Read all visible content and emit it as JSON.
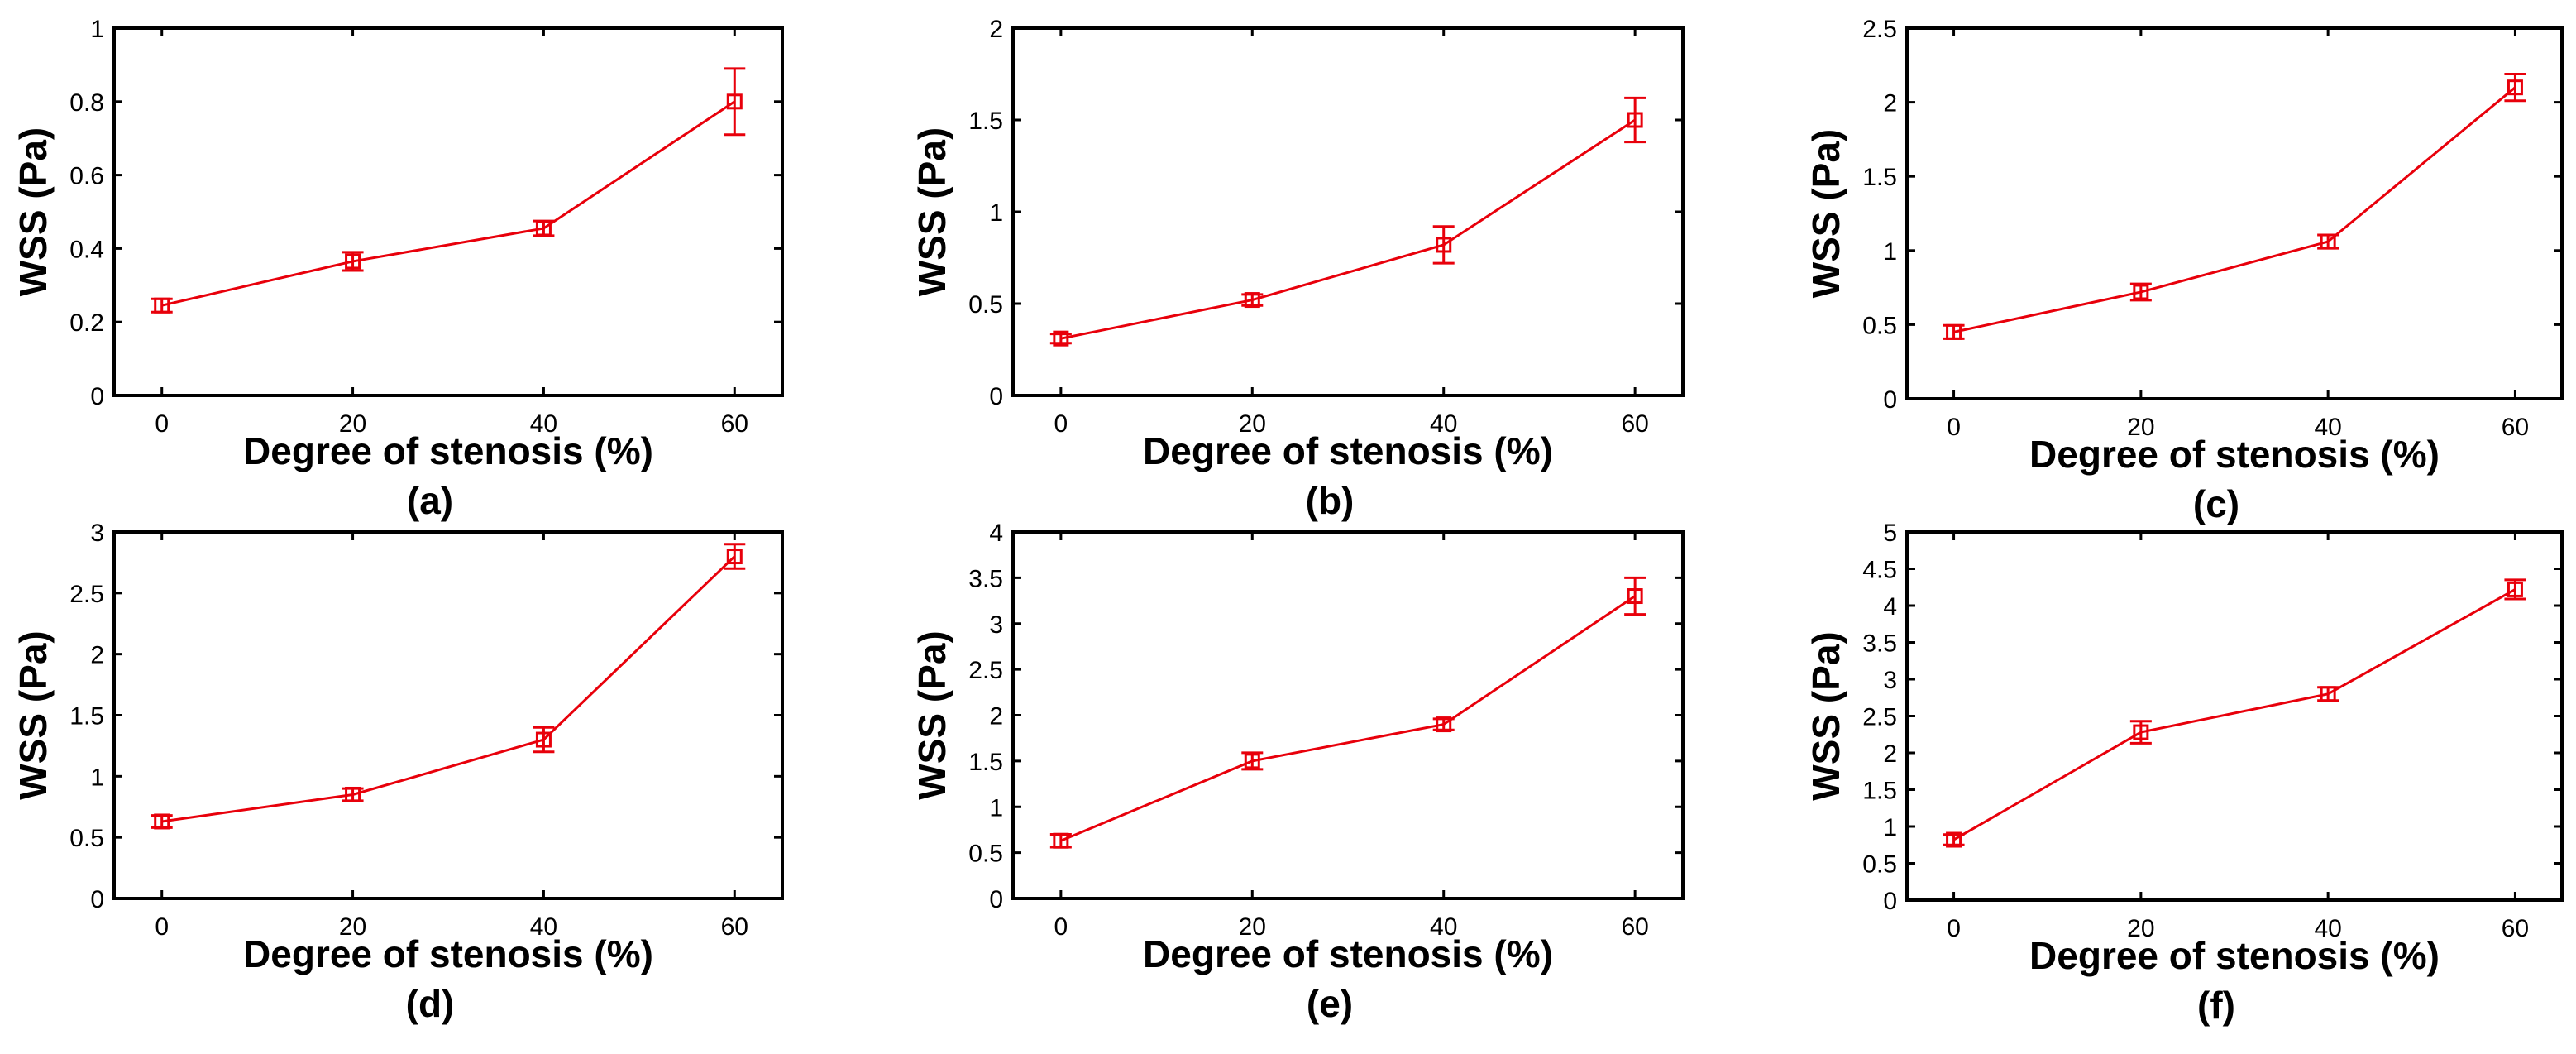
{
  "chart_data": [
    {
      "type": "line",
      "panel_label": "(a)",
      "xlabel": "Degree of stenosis (%)",
      "ylabel": "WSS (Pa)",
      "x": [
        0,
        20,
        40,
        60
      ],
      "xlim": [
        -5,
        65
      ],
      "xticks": [
        0,
        20,
        40,
        60
      ],
      "xtick_labels": [
        "0",
        "20",
        "40",
        "60"
      ],
      "ylim": [
        0,
        1
      ],
      "yticks": [
        0,
        0.2,
        0.4,
        0.6,
        0.8,
        1
      ],
      "ytick_labels": [
        "0",
        "0.2",
        "0.4",
        "0.6",
        "0.8",
        "1"
      ],
      "series": [
        {
          "name": "WSS",
          "values": [
            0.245,
            0.365,
            0.455,
            0.8
          ],
          "errors": [
            0.018,
            0.025,
            0.02,
            0.09
          ],
          "color": "#e8000b",
          "marker": "square"
        }
      ]
    },
    {
      "type": "line",
      "panel_label": "(b)",
      "xlabel": "Degree of stenosis (%)",
      "ylabel": "WSS (Pa)",
      "x": [
        0,
        20,
        40,
        60
      ],
      "xlim": [
        -5,
        65
      ],
      "xticks": [
        0,
        20,
        40,
        60
      ],
      "xtick_labels": [
        "0",
        "20",
        "40",
        "60"
      ],
      "ylim": [
        0,
        2
      ],
      "yticks": [
        0,
        0.5,
        1,
        1.5,
        2
      ],
      "ytick_labels": [
        "0",
        "0.5",
        "1",
        "1.5",
        "2"
      ],
      "series": [
        {
          "name": "WSS",
          "values": [
            0.31,
            0.52,
            0.82,
            1.5
          ],
          "errors": [
            0.025,
            0.03,
            0.1,
            0.12
          ],
          "color": "#e8000b",
          "marker": "square"
        }
      ]
    },
    {
      "type": "line",
      "panel_label": "(c)",
      "xlabel": "Degree of stenosis (%)",
      "ylabel": "WSS (Pa)",
      "x": [
        0,
        20,
        40,
        60
      ],
      "xlim": [
        -5,
        65
      ],
      "xticks": [
        0,
        20,
        40,
        60
      ],
      "xtick_labels": [
        "0",
        "20",
        "40",
        "60"
      ],
      "ylim": [
        0,
        2.5
      ],
      "yticks": [
        0,
        0.5,
        1,
        1.5,
        2,
        2.5
      ],
      "ytick_labels": [
        "0",
        "0.5",
        "1",
        "1.5",
        "2",
        "2.5"
      ],
      "series": [
        {
          "name": "WSS",
          "values": [
            0.45,
            0.72,
            1.06,
            2.1
          ],
          "errors": [
            0.045,
            0.055,
            0.045,
            0.09
          ],
          "color": "#e8000b",
          "marker": "square"
        }
      ]
    },
    {
      "type": "line",
      "panel_label": "(d)",
      "xlabel": "Degree of stenosis (%)",
      "ylabel": "WSS (Pa)",
      "x": [
        0,
        20,
        40,
        60
      ],
      "xlim": [
        -5,
        65
      ],
      "xticks": [
        0,
        20,
        40,
        60
      ],
      "xtick_labels": [
        "0",
        "20",
        "40",
        "60"
      ],
      "ylim": [
        0,
        3
      ],
      "yticks": [
        0,
        0.5,
        1,
        1.5,
        2,
        2.5,
        3
      ],
      "ytick_labels": [
        "0",
        "0.5",
        "1",
        "1.5",
        "2",
        "2.5",
        "3"
      ],
      "series": [
        {
          "name": "WSS",
          "values": [
            0.63,
            0.85,
            1.3,
            2.8
          ],
          "errors": [
            0.05,
            0.05,
            0.1,
            0.1
          ],
          "color": "#e8000b",
          "marker": "square"
        }
      ]
    },
    {
      "type": "line",
      "panel_label": "(e)",
      "xlabel": "Degree of stenosis (%)",
      "ylabel": "WSS (Pa)",
      "x": [
        0,
        20,
        40,
        60
      ],
      "xlim": [
        -5,
        65
      ],
      "xticks": [
        0,
        20,
        40,
        60
      ],
      "xtick_labels": [
        "0",
        "20",
        "40",
        "60"
      ],
      "ylim": [
        0,
        4
      ],
      "yticks": [
        0,
        0.5,
        1,
        1.5,
        2,
        2.5,
        3,
        3.5,
        4
      ],
      "ytick_labels": [
        "0",
        "0.5",
        "1",
        "1.5",
        "2",
        "2.5",
        "3",
        "3.5",
        "4"
      ],
      "series": [
        {
          "name": "WSS",
          "values": [
            0.63,
            1.5,
            1.9,
            3.3
          ],
          "errors": [
            0.07,
            0.09,
            0.06,
            0.2
          ],
          "color": "#e8000b",
          "marker": "square"
        }
      ]
    },
    {
      "type": "line",
      "panel_label": "(f)",
      "xlabel": "Degree of stenosis (%)",
      "ylabel": "WSS (Pa)",
      "x": [
        0,
        20,
        40,
        60
      ],
      "xlim": [
        -5,
        65
      ],
      "xticks": [
        0,
        20,
        40,
        60
      ],
      "xtick_labels": [
        "0",
        "20",
        "40",
        "60"
      ],
      "ylim": [
        0,
        5
      ],
      "yticks": [
        0,
        0.5,
        1,
        1.5,
        2,
        2.5,
        3,
        3.5,
        4,
        4.5,
        5
      ],
      "ytick_labels": [
        "0",
        "0.5",
        "1",
        "1.5",
        "2",
        "2.5",
        "3",
        "3.5",
        "4",
        "4.5",
        "5"
      ],
      "series": [
        {
          "name": "WSS",
          "values": [
            0.82,
            2.28,
            2.8,
            4.22
          ],
          "errors": [
            0.07,
            0.15,
            0.09,
            0.13
          ],
          "color": "#e8000b",
          "marker": "square"
        }
      ]
    }
  ]
}
